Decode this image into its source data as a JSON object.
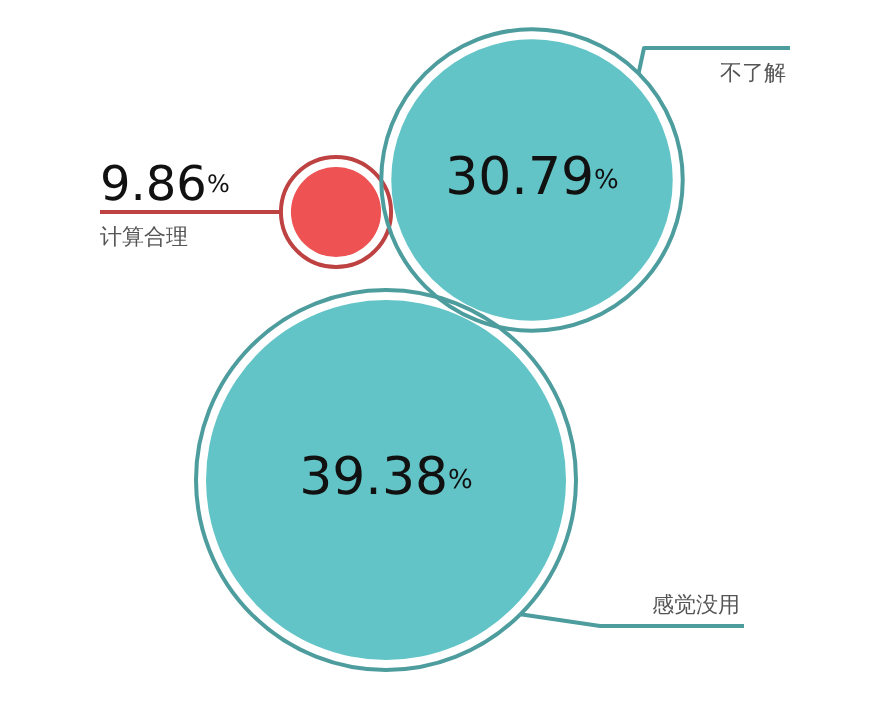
{
  "chart_data": {
    "type": "other",
    "categories": [
      "计算合理",
      "不了解",
      "感觉没用"
    ],
    "values": [
      9.86,
      30.79,
      39.38
    ],
    "value_labels": [
      "9.86%",
      "30.79%",
      "39.38%"
    ],
    "colors": [
      "#ee5253",
      "#62c4c6",
      "#62c4c6"
    ]
  }
}
